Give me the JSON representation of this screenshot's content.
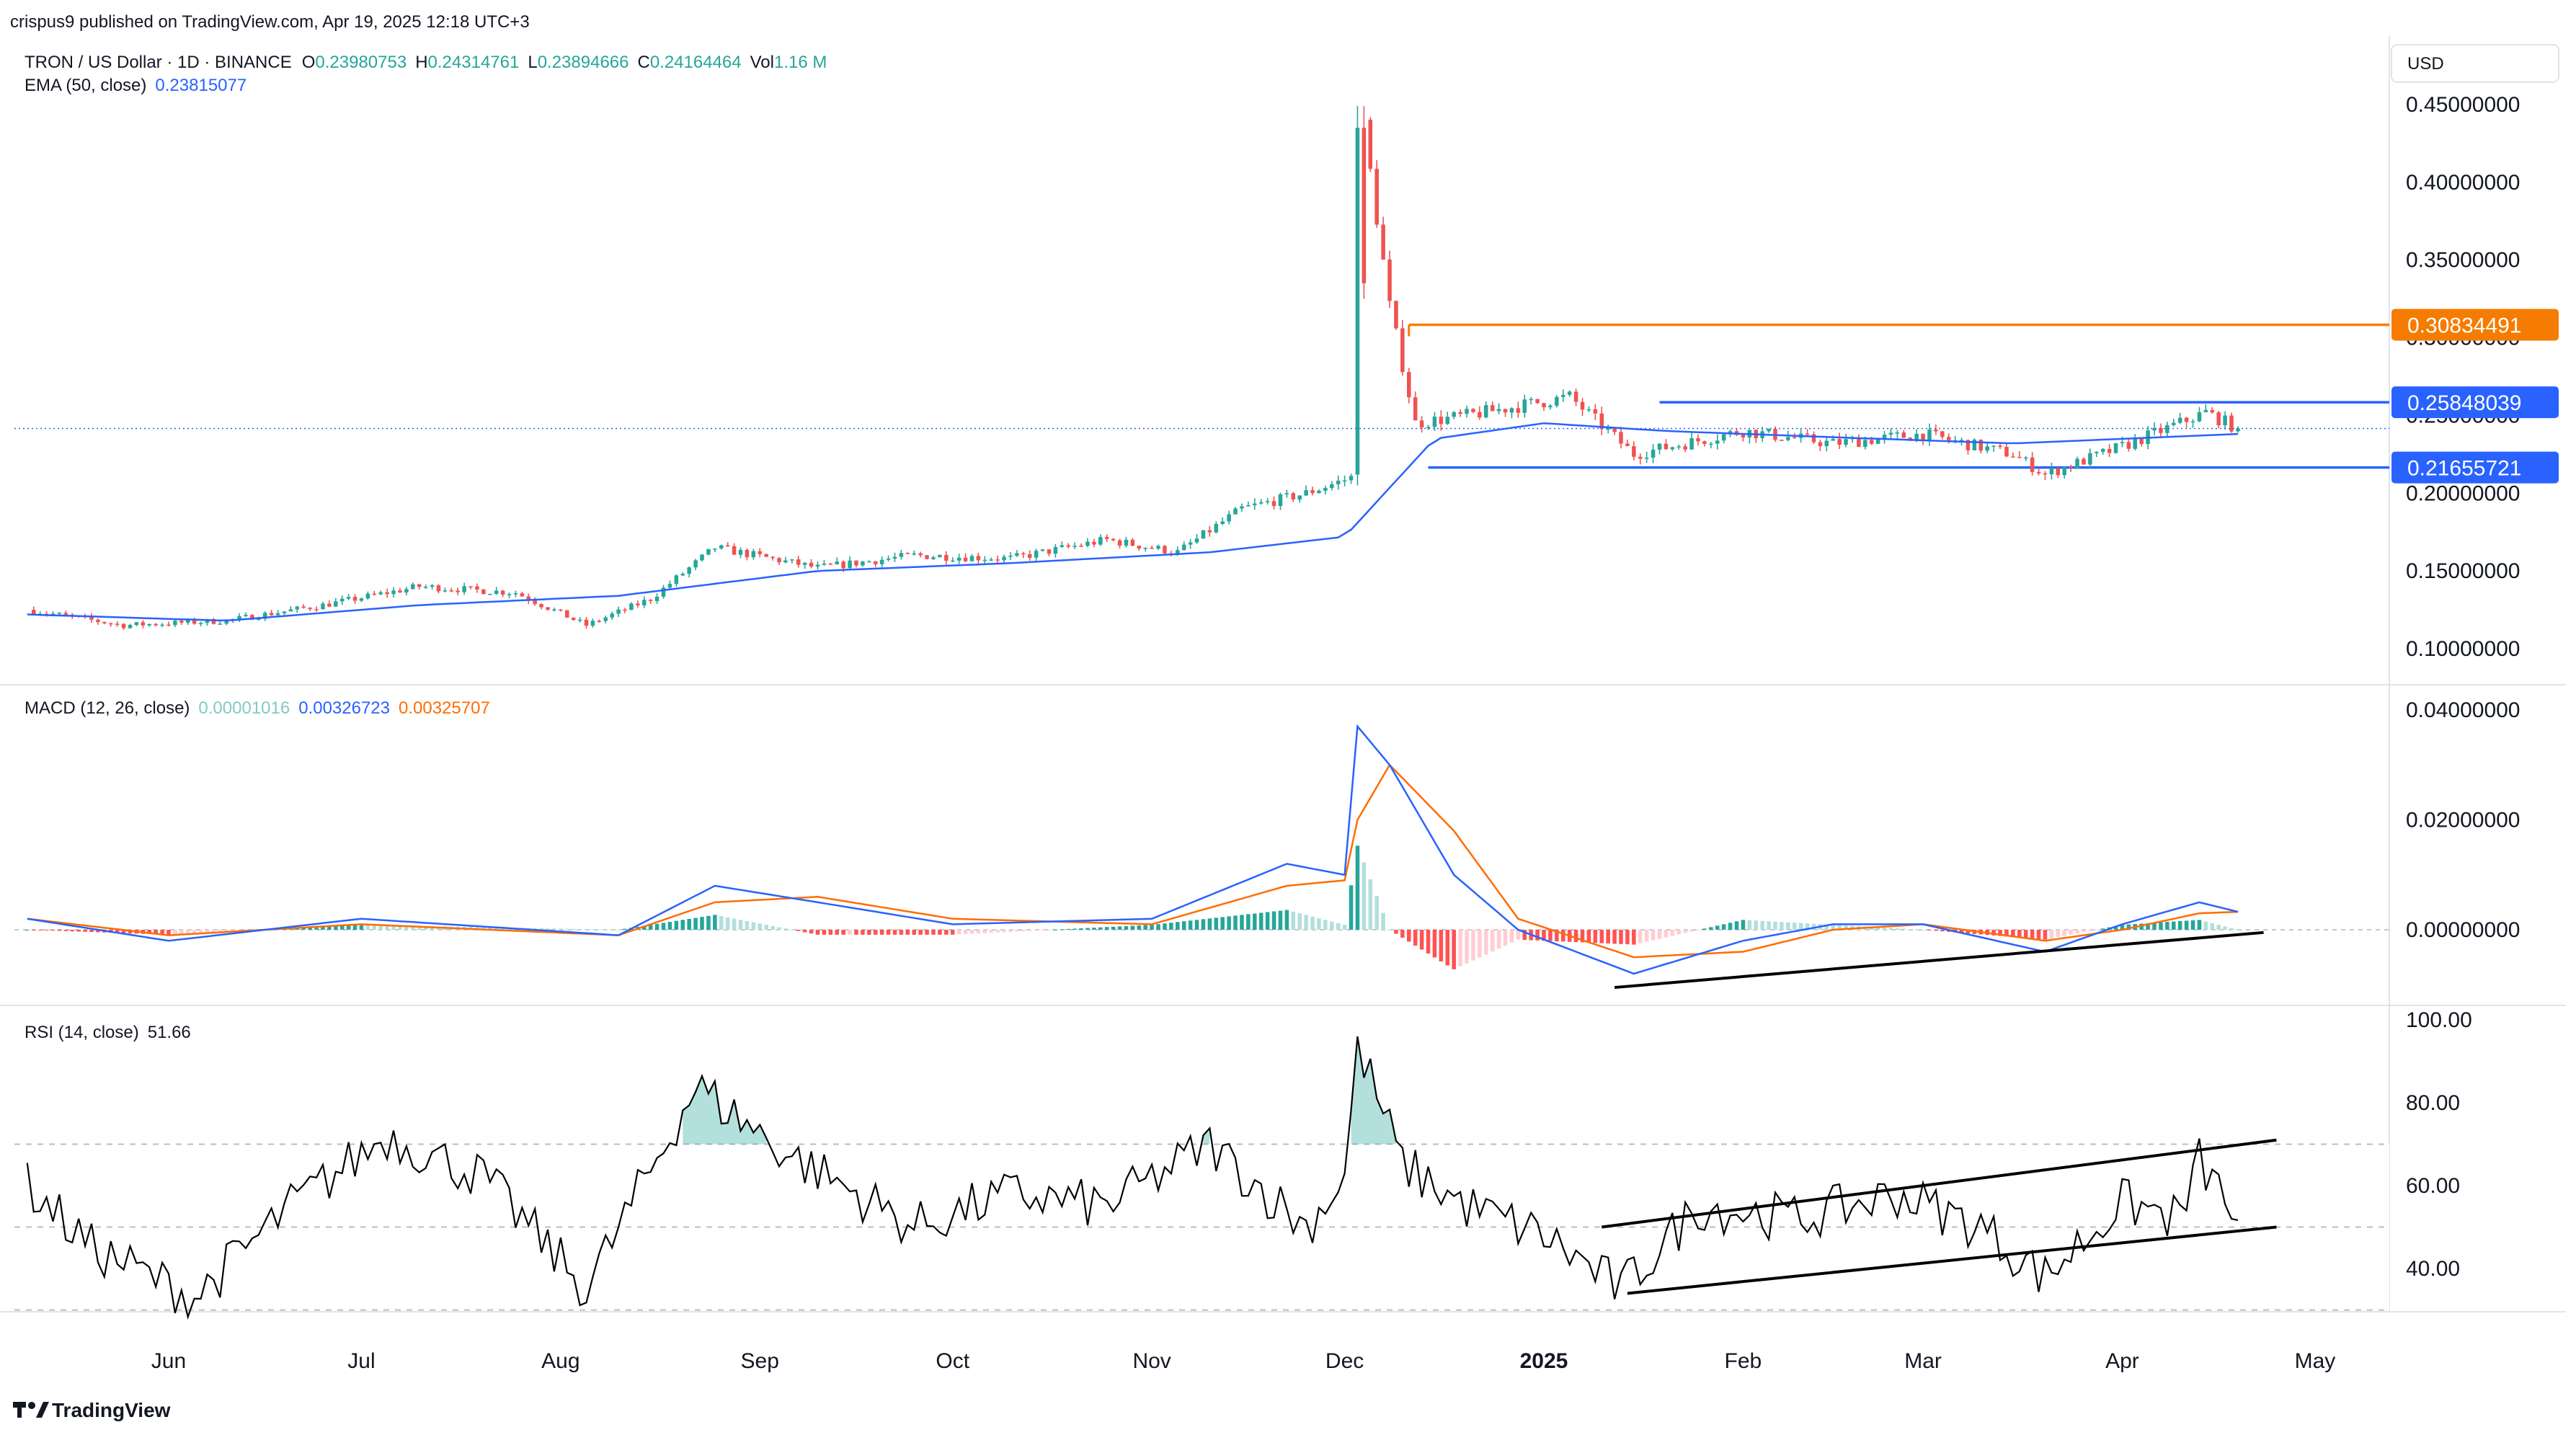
{
  "header": {
    "published_by": "crispus9 published on TradingView.com, Apr 19, 2025 12:18 UTC+3",
    "symbol": "TRON / US Dollar · 1D · BINANCE",
    "o_label": "O",
    "o_value": "0.23980753",
    "h_label": "H",
    "h_value": "0.24314761",
    "l_label": "L",
    "l_value": "0.23894666",
    "c_label": "C",
    "c_value": "0.24164464",
    "vol_label": "Vol",
    "vol_value": "1.16 M",
    "ema_label": "EMA (50, close)",
    "ema_value": "0.23815077",
    "currency": "USD"
  },
  "footer": {
    "brand": "TradingView"
  },
  "colors": {
    "up": "#26a69a",
    "down": "#ef5350",
    "ema": "#2962ff",
    "signal": "#ff6d00",
    "level_blue": "#2962ff",
    "level_orange": "#f57c00",
    "rsi": "#000000",
    "grid_text": "#131722"
  },
  "chart_data": [
    {
      "type": "candlestick",
      "title": "TRON / US Dollar · 1D · BINANCE",
      "x_ticks": [
        "Jun",
        "Jul",
        "Aug",
        "Sep",
        "Oct",
        "Nov",
        "Dec",
        "2025",
        "Feb",
        "Mar",
        "Apr",
        "May"
      ],
      "x_tick_dates": [
        "2024-06-01",
        "2024-07-01",
        "2024-08-01",
        "2024-09-01",
        "2024-10-01",
        "2024-11-01",
        "2024-12-01",
        "2025-01-01",
        "2025-02-01",
        "2025-03-01",
        "2025-04-01",
        "2025-05-01"
      ],
      "y_ticks": [
        "0.45000000",
        "0.40000000",
        "0.35000000",
        "0.30000000",
        "0.25000000",
        "0.20000000",
        "0.15000000",
        "0.10000000"
      ],
      "ylim": [
        0.07,
        0.47
      ],
      "close_series": {
        "dates": [
          "2024-05-10",
          "2024-05-25",
          "2024-06-10",
          "2024-06-25",
          "2024-07-10",
          "2024-07-25",
          "2024-08-05",
          "2024-08-15",
          "2024-08-25",
          "2024-09-10",
          "2024-09-25",
          "2024-10-10",
          "2024-10-25",
          "2024-11-05",
          "2024-11-15",
          "2024-11-25",
          "2024-12-02",
          "2024-12-04",
          "2024-12-08",
          "2024-12-12",
          "2024-12-20",
          "2025-01-05",
          "2025-01-15",
          "2025-02-01",
          "2025-02-15",
          "2025-03-01",
          "2025-03-15",
          "2025-03-20",
          "2025-04-01",
          "2025-04-14",
          "2025-04-19"
        ],
        "values": [
          0.125,
          0.115,
          0.118,
          0.128,
          0.14,
          0.136,
          0.115,
          0.132,
          0.165,
          0.152,
          0.16,
          0.158,
          0.17,
          0.162,
          0.19,
          0.2,
          0.21,
          0.435,
          0.32,
          0.245,
          0.25,
          0.262,
          0.225,
          0.24,
          0.232,
          0.238,
          0.225,
          0.212,
          0.23,
          0.252,
          0.2416
        ]
      },
      "ema_50": {
        "dates": [
          "2024-05-10",
          "2024-06-10",
          "2024-07-10",
          "2024-08-10",
          "2024-09-10",
          "2024-10-10",
          "2024-11-10",
          "2024-12-01",
          "2024-12-15",
          "2025-01-01",
          "2025-01-20",
          "2025-02-15",
          "2025-03-15",
          "2025-04-19"
        ],
        "values": [
          0.122,
          0.118,
          0.128,
          0.134,
          0.15,
          0.155,
          0.162,
          0.172,
          0.235,
          0.245,
          0.24,
          0.236,
          0.232,
          0.2381
        ]
      },
      "levels": [
        {
          "value": 0.30834491,
          "label": "0.30834491",
          "color": "#f57c00",
          "from": "2024-12-11"
        },
        {
          "value": 0.25848039,
          "label": "0.25848039",
          "color": "#2962ff",
          "from": "2025-01-19"
        },
        {
          "value": 0.21655721,
          "label": "0.21655721",
          "color": "#2962ff",
          "from": "2024-12-14"
        }
      ],
      "last_price": 0.2416
    },
    {
      "type": "line",
      "title": "MACD (12, 26, close)",
      "legend": [
        {
          "name": "0.00001016",
          "color": "#80cbc4"
        },
        {
          "name": "0.00326723",
          "color": "#2962ff"
        },
        {
          "name": "0.00325707",
          "color": "#ff6d00"
        }
      ],
      "y_ticks": [
        "0.04000000",
        "0.02000000",
        "0.00000000"
      ],
      "ylim": [
        -0.012,
        0.045
      ],
      "x": [
        "2024-05-10",
        "2024-06-01",
        "2024-07-01",
        "2024-08-10",
        "2024-08-25",
        "2024-09-10",
        "2024-10-01",
        "2024-11-01",
        "2024-11-22",
        "2024-12-01",
        "2024-12-03",
        "2024-12-08",
        "2024-12-18",
        "2024-12-28",
        "2025-01-15",
        "2025-02-01",
        "2025-02-15",
        "2025-03-01",
        "2025-03-20",
        "2025-04-01",
        "2025-04-13",
        "2025-04-19"
      ],
      "macd": [
        0.002,
        -0.002,
        0.002,
        -0.001,
        0.008,
        0.005,
        0.001,
        0.002,
        0.012,
        0.01,
        0.037,
        0.03,
        0.01,
        0.0,
        -0.008,
        -0.002,
        0.001,
        0.001,
        -0.004,
        0.001,
        0.005,
        0.00327
      ],
      "signal": [
        0.002,
        -0.001,
        0.001,
        -0.001,
        0.005,
        0.006,
        0.002,
        0.001,
        0.008,
        0.009,
        0.02,
        0.03,
        0.018,
        0.002,
        -0.005,
        -0.004,
        0.0,
        0.001,
        -0.002,
        0.0,
        0.003,
        0.00326
      ],
      "trendline": {
        "from": [
          "2025-01-12",
          -0.0105
        ],
        "to": [
          "2025-04-23",
          -0.0005
        ]
      }
    },
    {
      "type": "line",
      "title": "RSI (14, close)",
      "legend": [
        {
          "name": "51.66",
          "color": "#131722"
        }
      ],
      "y_ticks": [
        "100.00",
        "80.00",
        "60.00",
        "40.00"
      ],
      "ylim": [
        26,
        100
      ],
      "dashed_lines": [
        70,
        50,
        30
      ],
      "x": [
        "2024-05-10",
        "2024-05-20",
        "2024-06-05",
        "2024-06-20",
        "2024-07-05",
        "2024-07-20",
        "2024-08-05",
        "2024-08-22",
        "2024-09-05",
        "2024-09-25",
        "2024-10-10",
        "2024-10-25",
        "2024-11-10",
        "2024-11-25",
        "2024-12-01",
        "2024-12-03",
        "2024-12-10",
        "2024-12-20",
        "2025-01-01",
        "2025-01-13",
        "2025-01-25",
        "2025-02-10",
        "2025-02-25",
        "2025-03-10",
        "2025-03-20",
        "2025-04-01",
        "2025-04-10",
        "2025-04-13",
        "2025-04-19"
      ],
      "values": [
        60,
        45,
        33,
        55,
        72,
        62,
        35,
        84,
        68,
        50,
        58,
        55,
        70,
        50,
        62,
        94,
        65,
        55,
        48,
        35,
        55,
        52,
        58,
        50,
        38,
        56,
        52,
        66,
        51.66
      ],
      "channel": [
        {
          "from": [
            "2025-01-10",
            50
          ],
          "to": [
            "2025-04-25",
            71
          ]
        },
        {
          "from": [
            "2025-01-14",
            34
          ],
          "to": [
            "2025-04-25",
            50
          ]
        }
      ]
    }
  ]
}
